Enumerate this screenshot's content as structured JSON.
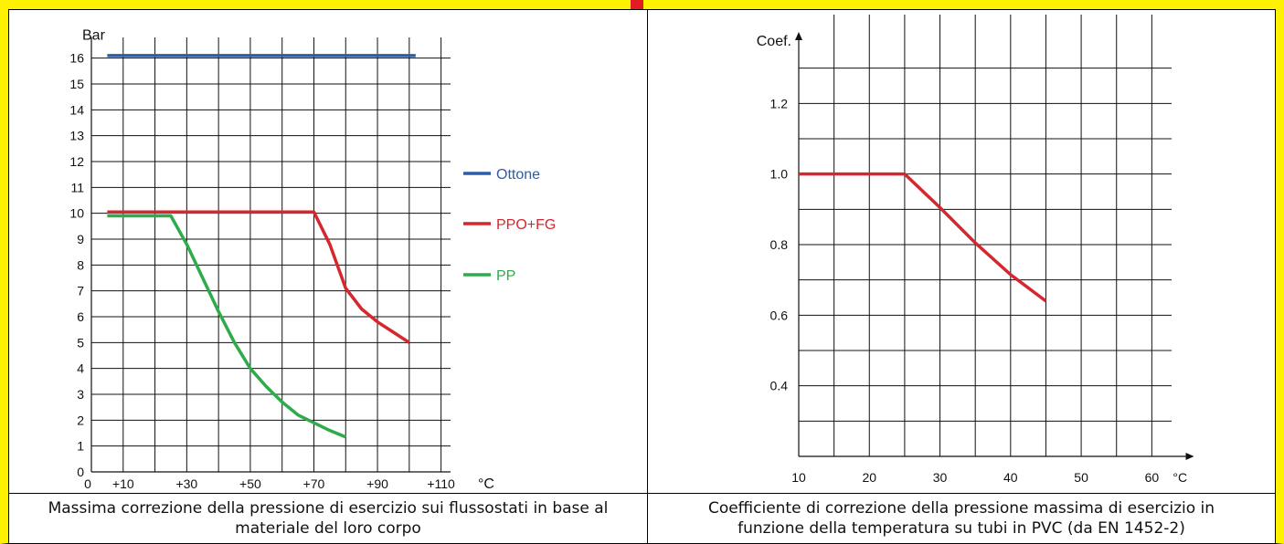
{
  "colors": {
    "frame": "#fff200",
    "accent": "#e11d23",
    "grid": "#111111"
  },
  "chart_data": [
    {
      "type": "line",
      "ylabel": "Bar",
      "xunit": "°C",
      "xlim": [
        0,
        115
      ],
      "ylim": [
        0,
        16.8
      ],
      "x_ticks": [
        0,
        10,
        30,
        50,
        70,
        90,
        110
      ],
      "x_tick_labels": [
        "0",
        "+10",
        "+30",
        "+50",
        "+70",
        "+90",
        "+110"
      ],
      "y_ticks": [
        0,
        1,
        2,
        3,
        4,
        5,
        6,
        7,
        8,
        9,
        10,
        11,
        12,
        13,
        14,
        15,
        16
      ],
      "y_tick_labels": [
        "0",
        "1",
        "2",
        "3",
        "4",
        "5",
        "6",
        "7",
        "8",
        "9",
        "10",
        "11",
        "12",
        "13",
        "14",
        "15",
        "16"
      ],
      "grid": true,
      "legend_position": "right",
      "series": [
        {
          "name": "Ottone",
          "color": "#2b5da8",
          "x": [
            5,
            102
          ],
          "y": [
            16.1,
            16.1
          ]
        },
        {
          "name": "PPO+FG",
          "color": "#d6262e",
          "x": [
            5,
            20,
            40,
            60,
            70,
            75,
            80,
            85,
            90,
            95,
            100
          ],
          "y": [
            10.05,
            10.05,
            10.05,
            10.05,
            10.05,
            8.8,
            7.1,
            6.3,
            5.8,
            5.4,
            5.0
          ]
        },
        {
          "name": "PP",
          "color": "#2eab4a",
          "x": [
            5,
            15,
            25,
            30,
            35,
            40,
            45,
            50,
            55,
            60,
            65,
            70,
            75,
            80
          ],
          "y": [
            9.9,
            9.9,
            9.9,
            8.8,
            7.5,
            6.2,
            5.0,
            4.0,
            3.3,
            2.7,
            2.2,
            1.9,
            1.6,
            1.35
          ]
        }
      ]
    },
    {
      "type": "line",
      "ylabel": "Coef.",
      "xunit": "°C",
      "xlim": [
        10,
        65
      ],
      "ylim": [
        0.2,
        1.4
      ],
      "x_ticks": [
        10,
        20,
        30,
        40,
        50,
        60
      ],
      "x_tick_labels": [
        "10",
        "20",
        "30",
        "40",
        "50",
        "60"
      ],
      "y_ticks": [
        0.4,
        0.6,
        0.8,
        1.0,
        1.2
      ],
      "y_tick_labels": [
        "0.4",
        "0.6",
        "0.8",
        "1.0",
        "1.2"
      ],
      "grid": true,
      "series": [
        {
          "color": "#d6262e",
          "x": [
            10,
            25,
            30,
            35,
            40,
            45
          ],
          "y": [
            1.0,
            1.0,
            0.905,
            0.805,
            0.715,
            0.64
          ]
        }
      ]
    }
  ],
  "captions": {
    "left": [
      "Massima correzione della pressione di esercizio sui flussostati in base al",
      "materiale del loro corpo"
    ],
    "right": [
      "Coefficiente di correzione della pressione massima di esercizio in",
      "funzione della temperatura su tubi in PVC (da EN 1452-2)"
    ]
  }
}
